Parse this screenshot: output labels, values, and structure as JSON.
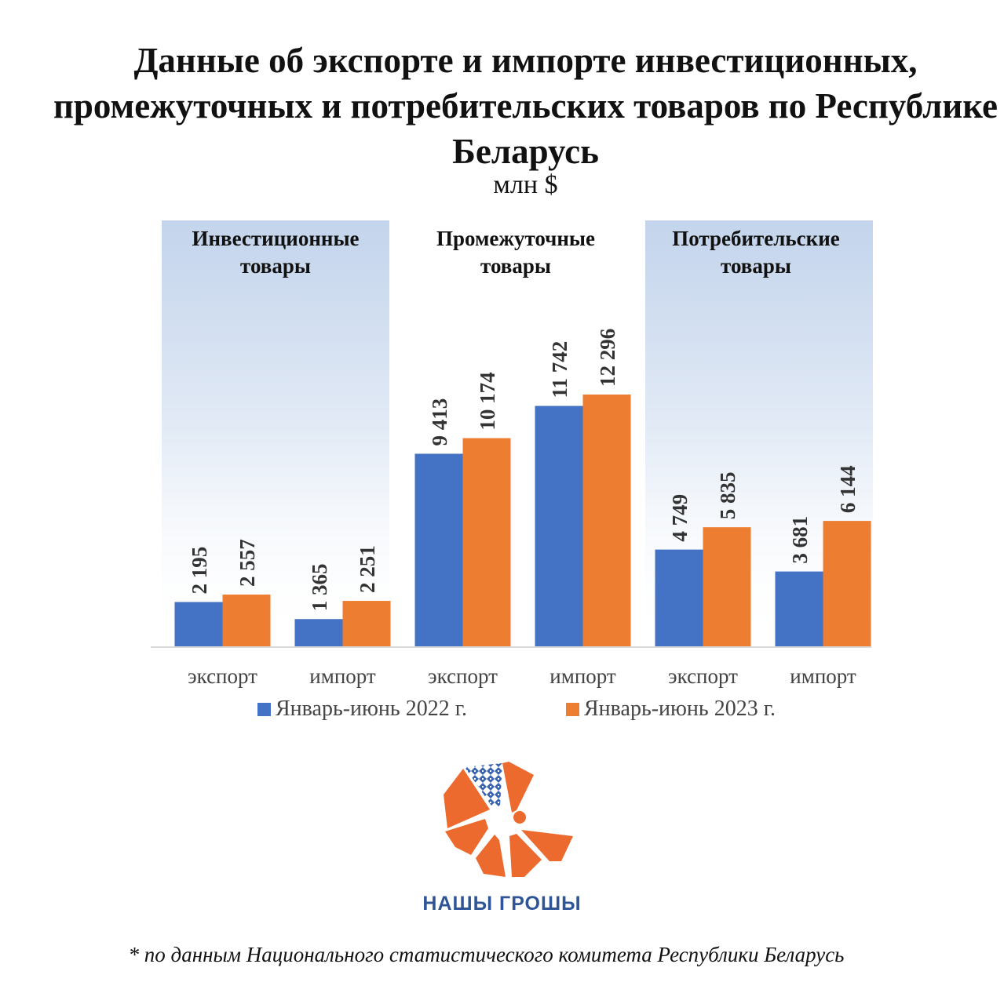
{
  "title": "Данные об экспорте и импорте инвестиционных, промежуточных и потребительских товаров по Республике Беларусь",
  "unit": "млн $",
  "colors": {
    "series_2022": "#4472C4",
    "series_2023": "#ED7D31",
    "brand_blue": "#2F5597"
  },
  "chart_data": {
    "type": "bar",
    "groups": [
      {
        "label_lines": [
          "Инвестиционные",
          "товары"
        ]
      },
      {
        "label_lines": [
          "Промежуточные",
          "товары"
        ]
      },
      {
        "label_lines": [
          "Потребительские",
          "товары"
        ]
      }
    ],
    "categories": [
      "экспорт",
      "импорт",
      "экспорт",
      "импорт",
      "экспорт",
      "импорт"
    ],
    "series": [
      {
        "name": "Январь-июнь 2022 г.",
        "values": [
          2195,
          1365,
          9413,
          11742,
          4749,
          3681
        ],
        "labels": [
          "2 195",
          "1 365",
          "9 413",
          "11 742",
          "4 749",
          "3 681"
        ]
      },
      {
        "name": "Январь-июнь 2023 г.",
        "values": [
          2557,
          2251,
          10174,
          12296,
          5835,
          6144
        ],
        "labels": [
          "2 557",
          "2 251",
          "10 174",
          "12 296",
          "5 835",
          "6 144"
        ]
      }
    ],
    "ylim": [
      0,
      12296
    ],
    "legend_position": "bottom"
  },
  "logo": {
    "name": "НАШЫ ГРОШЫ",
    "icon": "nashy-groshy-logo-icon"
  },
  "footnote": "* по данным Национального статистического комитета Республики Беларусь"
}
